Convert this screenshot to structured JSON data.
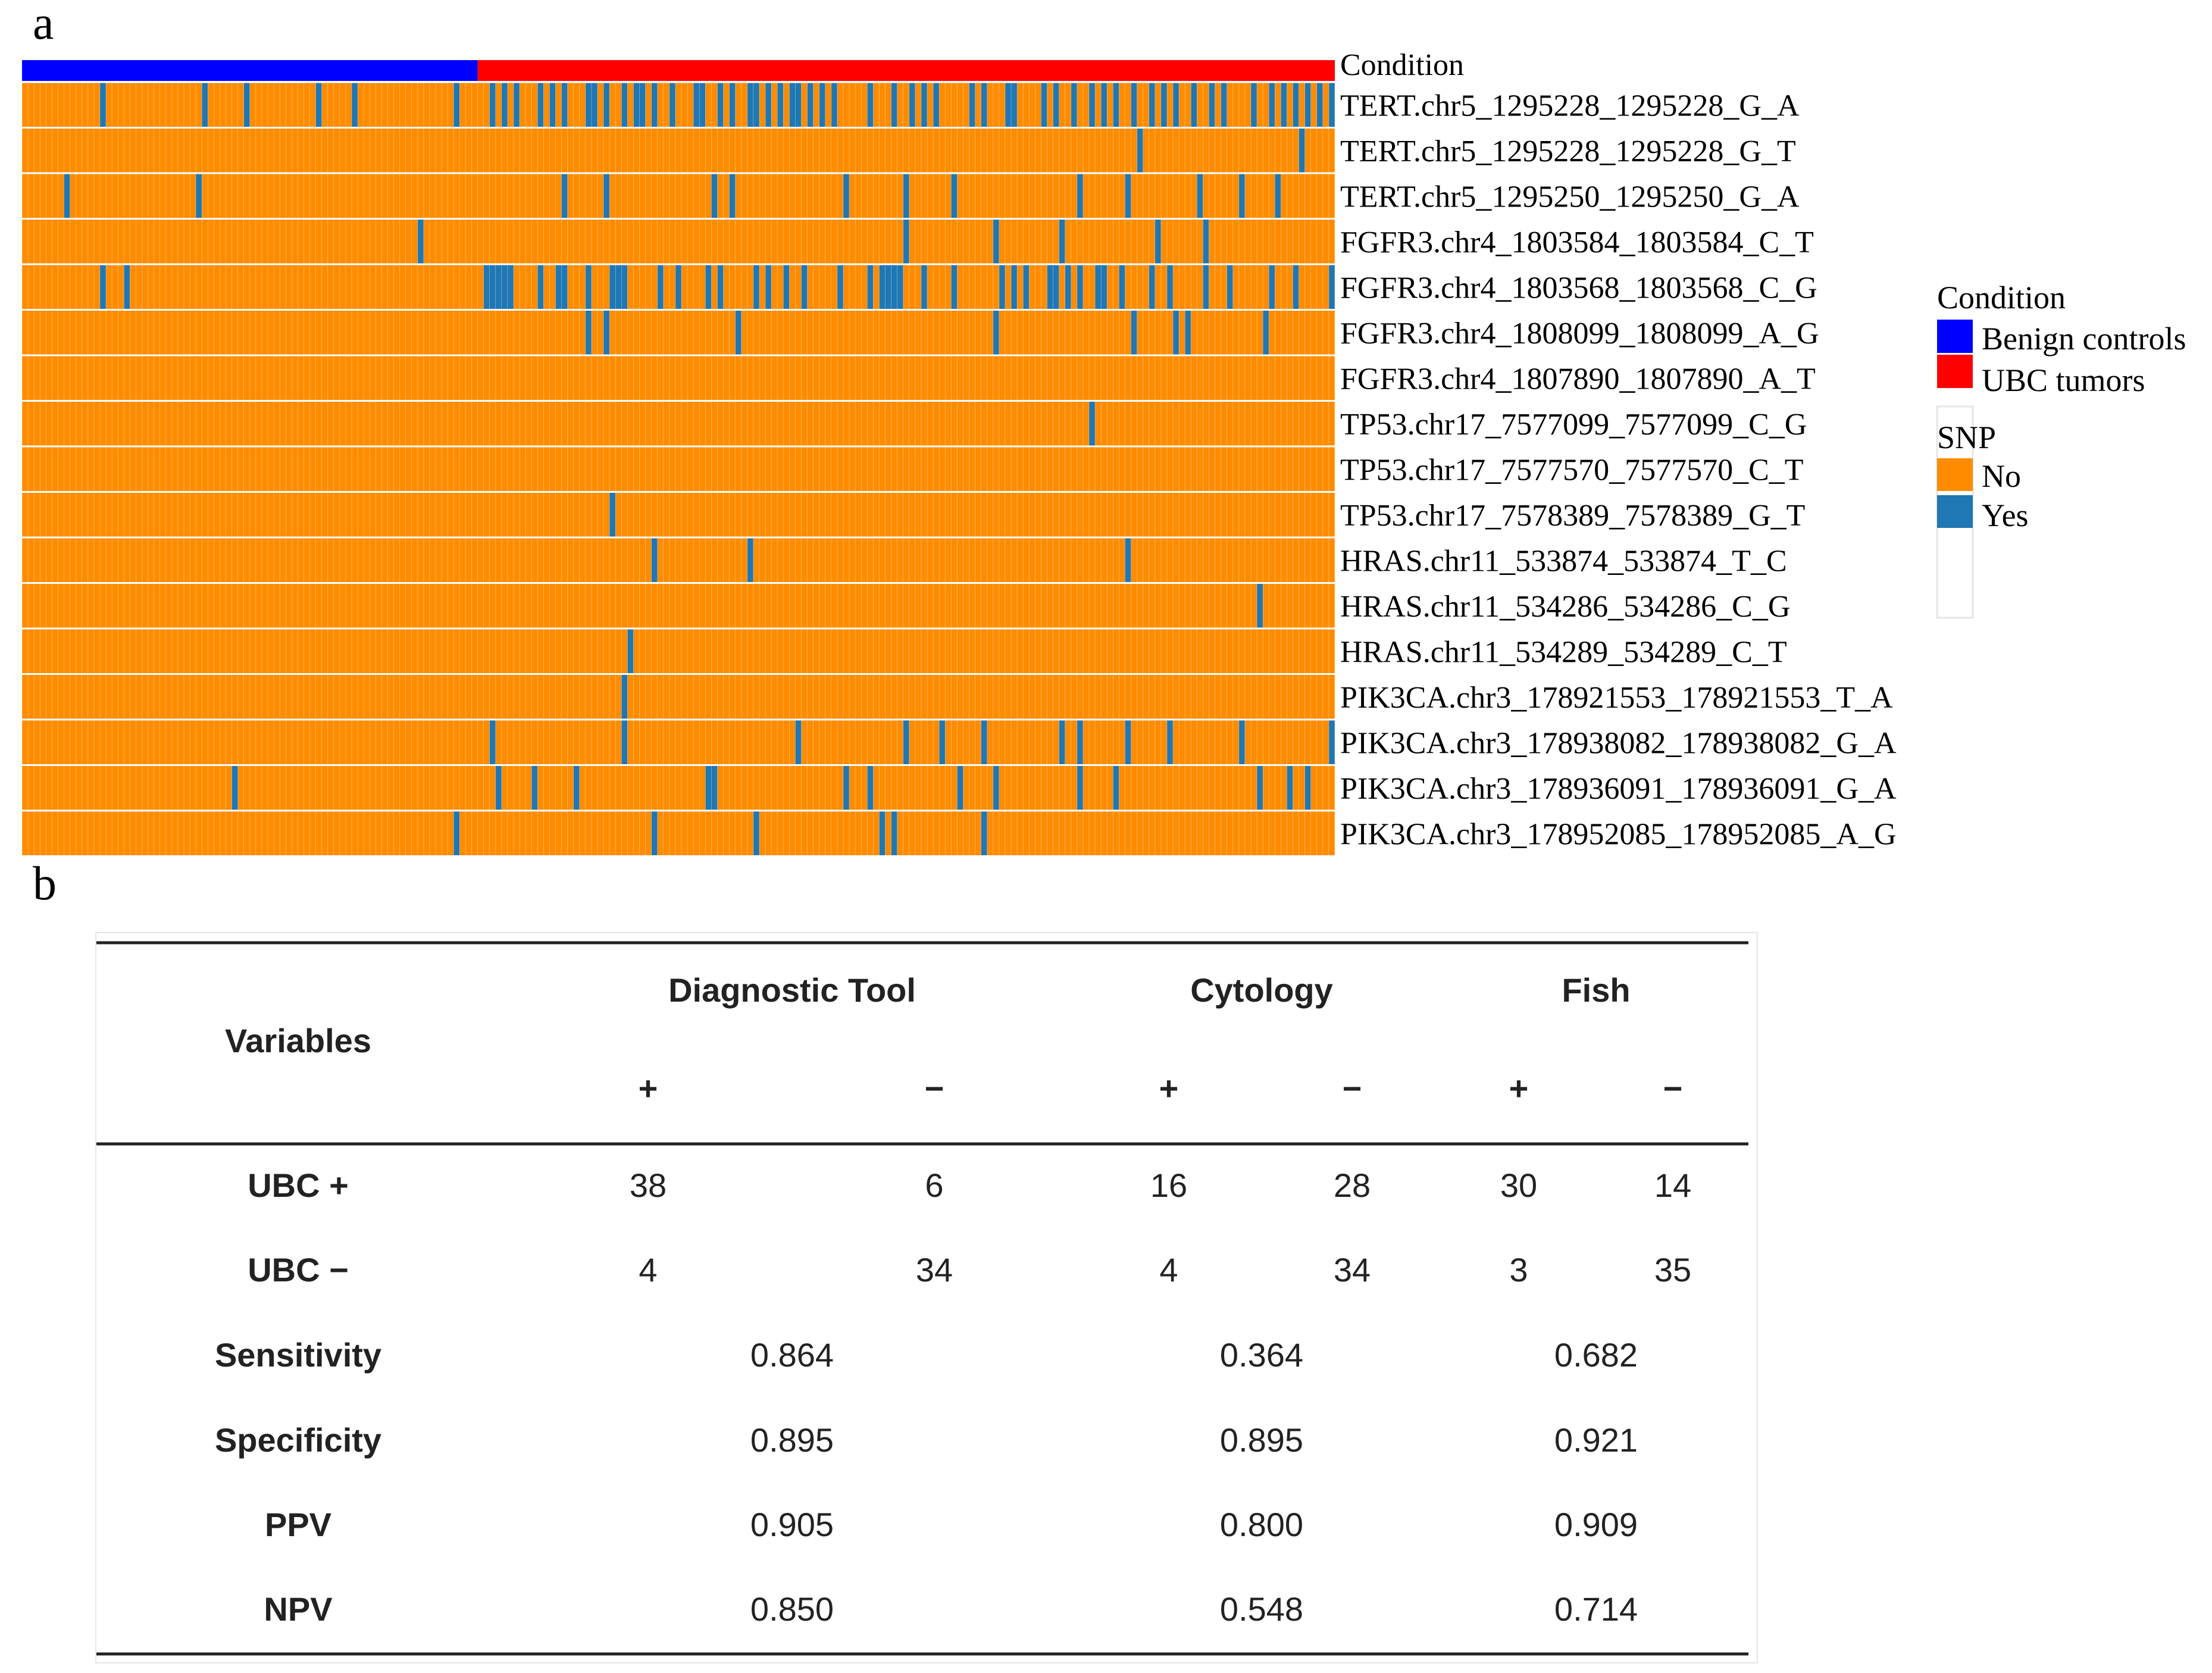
{
  "panel_labels": {
    "a": "a",
    "b": "b"
  },
  "colors": {
    "benign": "#0000ff",
    "tumor": "#ff0000",
    "snp_no": "#ff8c00",
    "snp_yes": "#1f77b4",
    "grid": "#ffffff"
  },
  "chart_data": [
    {
      "type": "heatmap",
      "title": "",
      "condition_label": "Condition",
      "n_samples": 219,
      "conditions": [
        {
          "name": "Benign controls",
          "count": 76
        },
        {
          "name": "UBC tumors",
          "count": 143
        }
      ],
      "rows": [
        {
          "label": "TERT.chr5_1295228_1295228_G_A",
          "yes_samples": [
            13,
            30,
            37,
            49,
            55,
            72,
            78,
            80,
            82,
            86,
            88,
            90,
            94,
            95,
            97,
            100,
            102,
            103,
            105,
            108,
            112,
            113,
            116,
            118,
            121,
            122,
            124,
            126,
            128,
            129,
            131,
            133,
            135,
            141,
            145,
            148,
            150,
            152,
            158,
            160,
            164,
            165,
            170,
            172,
            175,
            178,
            180,
            182,
            185,
            188,
            190,
            192,
            195,
            198,
            200,
            205,
            208,
            210,
            212,
            214,
            216,
            218
          ]
        },
        {
          "label": "TERT.chr5_1295228_1295228_G_T",
          "yes_samples": [
            186,
            213
          ]
        },
        {
          "label": "TERT.chr5_1295250_1295250_G_A",
          "yes_samples": [
            7,
            29,
            90,
            97,
            115,
            118,
            137,
            147,
            155,
            176,
            184,
            196,
            203,
            209
          ]
        },
        {
          "label": "FGFR3.chr4_1803584_1803584_C_T",
          "yes_samples": [
            66,
            147,
            162,
            173,
            189,
            197
          ]
        },
        {
          "label": "FGFR3.chr4_1803568_1803568_C_G",
          "yes_samples": [
            13,
            17,
            77,
            78,
            79,
            80,
            81,
            86,
            89,
            90,
            94,
            98,
            99,
            100,
            106,
            109,
            114,
            116,
            122,
            124,
            127,
            130,
            136,
            141,
            143,
            144,
            145,
            146,
            150,
            155,
            163,
            165,
            167,
            171,
            172,
            174,
            176,
            179,
            180,
            183,
            188,
            191,
            197,
            201,
            208,
            212,
            218
          ]
        },
        {
          "label": "FGFR3.chr4_1808099_1808099_A_G",
          "yes_samples": [
            94,
            97,
            119,
            162,
            185,
            192,
            194,
            207
          ]
        },
        {
          "label": "FGFR3.chr4_1807890_1807890_A_T",
          "yes_samples": []
        },
        {
          "label": "TP53.chr17_7577099_7577099_C_G",
          "yes_samples": [
            178
          ]
        },
        {
          "label": "TP53.chr17_7577570_7577570_C_T",
          "yes_samples": []
        },
        {
          "label": "TP53.chr17_7578389_7578389_G_T",
          "yes_samples": [
            98
          ]
        },
        {
          "label": "HRAS.chr11_533874_533874_T_C",
          "yes_samples": [
            105,
            121,
            184
          ]
        },
        {
          "label": "HRAS.chr11_534286_534286_C_G",
          "yes_samples": [
            206
          ]
        },
        {
          "label": "HRAS.chr11_534289_534289_C_T",
          "yes_samples": [
            101
          ]
        },
        {
          "label": "PIK3CA.chr3_178921553_178921553_T_A",
          "yes_samples": [
            100
          ]
        },
        {
          "label": "PIK3CA.chr3_178938082_178938082_G_A",
          "yes_samples": [
            78,
            100,
            129,
            147,
            153,
            160,
            173,
            176,
            184,
            191,
            203,
            218
          ]
        },
        {
          "label": "PIK3CA.chr3_178936091_178936091_G_A",
          "yes_samples": [
            35,
            79,
            85,
            92,
            114,
            115,
            137,
            141,
            156,
            162,
            176,
            182,
            206,
            211,
            214
          ]
        },
        {
          "label": "PIK3CA.chr3_178952085_178952085_A_G",
          "yes_samples": [
            72,
            105,
            122,
            143,
            145,
            160
          ]
        }
      ],
      "legend": {
        "condition": {
          "title": "Condition",
          "items": [
            "Benign controls",
            "UBC tumors"
          ]
        },
        "snp": {
          "title": "SNP",
          "items": [
            "No",
            "Yes"
          ]
        }
      }
    },
    {
      "type": "table",
      "title": "",
      "header": {
        "variables": "Variables",
        "groups": [
          "Diagnostic Tool",
          "Cytology",
          "Fish"
        ],
        "signs": [
          "+",
          "−",
          "+",
          "−",
          "+",
          "−"
        ]
      },
      "count_rows": [
        {
          "label": "UBC +",
          "values": [
            "38",
            "6",
            "16",
            "28",
            "30",
            "14"
          ]
        },
        {
          "label": "UBC −",
          "values": [
            "4",
            "34",
            "4",
            "34",
            "3",
            "35"
          ]
        }
      ],
      "metric_rows": [
        {
          "label": "Sensitivity",
          "values": [
            "0.864",
            "0.364",
            "0.682"
          ]
        },
        {
          "label": "Specificity",
          "values": [
            "0.895",
            "0.895",
            "0.921"
          ]
        },
        {
          "label": "PPV",
          "values": [
            "0.905",
            "0.800",
            "0.909"
          ]
        },
        {
          "label": "NPV",
          "values": [
            "0.850",
            "0.548",
            "0.714"
          ]
        }
      ]
    }
  ]
}
